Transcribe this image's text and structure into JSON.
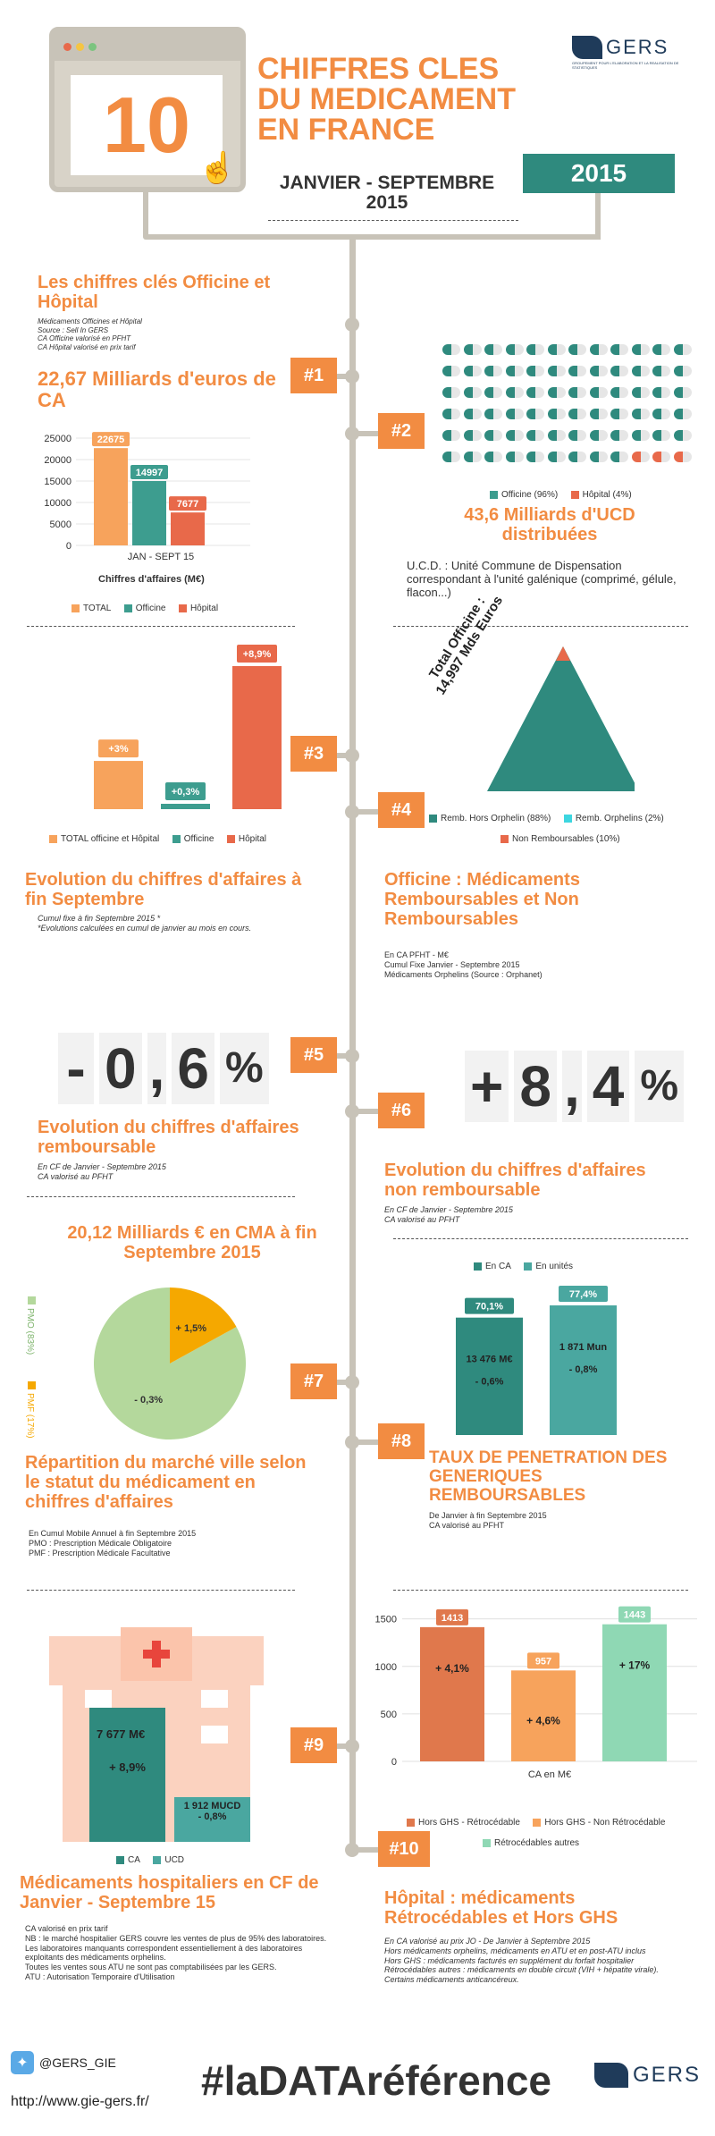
{
  "header": {
    "number": "10",
    "title_lines": [
      "CHIFFRES CLES",
      "DU MEDICAMENT",
      "EN FRANCE"
    ],
    "period_line1": "JANVIER - SEPTEMBRE",
    "period_line2": "2015",
    "year_badge": "2015",
    "logo_text": "GERS",
    "logo_subtitle": "GROUPEMENT POUR L'ELABORATION ET LA REALISATION DE STATISTIQUES"
  },
  "section1": {
    "title": "Les chiffres clés Officine et Hôpital",
    "notes": [
      "Médicaments Officines et Hôpital",
      "Source : Sell In GERS",
      "CA Officine valorisé en PFHT",
      "CA Hôpital valorisé en prix tarif"
    ]
  },
  "item1": {
    "badge": "#1",
    "title": "22,67  Milliards d'euros de CA",
    "chart_data": {
      "type": "bar",
      "categories": [
        "JAN - SEPT 15"
      ],
      "series": [
        {
          "name": "TOTAL",
          "values": [
            22675
          ],
          "color": "#f7a35c"
        },
        {
          "name": "Officine",
          "values": [
            14997
          ],
          "color": "#3d9d8f"
        },
        {
          "name": "Hôpital",
          "values": [
            7677
          ],
          "color": "#e8694a"
        }
      ],
      "yticks": [
        "25000",
        "20000",
        "15000",
        "10000",
        "5000",
        "0"
      ],
      "ylim": [
        0,
        25000
      ],
      "xlabel": "Chiffres d'affaires (M€)",
      "data_labels": [
        "22675",
        "14997",
        "7677"
      ]
    }
  },
  "item2": {
    "badge": "#2",
    "pill_rows": 6,
    "pill_cols": 12,
    "legend": [
      {
        "label": "Officine (96%)",
        "color": "#3d9d8f"
      },
      {
        "label": "Hôpital (4%)",
        "color": "#e8694a"
      }
    ],
    "title": "43,6  Milliards d'UCD distribuées",
    "note": "U.C.D. : Unité Commune de Dispensation correspondant à l'unité galénique (comprimé, gélule, flacon...)"
  },
  "item3": {
    "badge": "#3",
    "chart_data": {
      "type": "bar",
      "categories": [
        "TOTAL officine et Hôpital",
        "Officine",
        "Hôpital"
      ],
      "values": [
        3,
        0.3,
        8.9
      ],
      "data_labels": [
        "+3%",
        "+0,3%",
        "+8,9%"
      ],
      "colors": [
        "#f7a35c",
        "#3d9d8f",
        "#e8694a"
      ]
    },
    "title": "Evolution du chiffres d'affaires à fin Septembre",
    "notes": [
      "Cumul fixe à fin Septembre  2015 *",
      "*Evolutions calculées en cumul de janvier au mois en cours."
    ]
  },
  "item4": {
    "badge": "#4",
    "triangle_label_1": "Total Officine :",
    "triangle_label_2": "14,997 Mds Euros",
    "legend": [
      {
        "label": "Remb. Hors Orphelin (88%)",
        "color": "#2f8a7e"
      },
      {
        "label": "Remb. Orphelins (2%)",
        "color": "#3dd6e0"
      },
      {
        "label": "Non Remboursables (10%)",
        "color": "#e8694a"
      }
    ],
    "title": "Officine : Médicaments Remboursables et Non Remboursables",
    "notes": [
      "En CA PFHT - M€",
      "Cumul Fixe Janvier  - Septembre 2015",
      "Médicaments Orphelins (Source : Orphanet)"
    ]
  },
  "item5": {
    "badge": "#5",
    "digits": [
      "-",
      "0",
      ",",
      "6",
      "%"
    ],
    "title": "Evolution du chiffres d'affaires remboursable",
    "notes": [
      "En CF de Janvier - Septembre 2015",
      "CA valorisé au PFHT"
    ]
  },
  "item6": {
    "badge": "#6",
    "digits": [
      "+",
      "8",
      ",",
      "4",
      "%"
    ],
    "title": "Evolution du chiffres d'affaires non remboursable",
    "notes": [
      "En CF de Janvier - Septembre  2015",
      "CA valorisé au PFHT"
    ]
  },
  "item7": {
    "badge": "#7",
    "title": "20,12 Milliards € en CMA à fin Septembre 2015",
    "chart_data": {
      "type": "pie",
      "slices": [
        {
          "name": "PMO (83%)",
          "value": 83,
          "label": "- 0,3%",
          "color": "#b4d89c"
        },
        {
          "name": "PMF (17%)",
          "value": 17,
          "label": "+ 1,5%",
          "color": "#f5a800"
        }
      ]
    },
    "subtitle": "Répartition du marché ville selon le statut du médicament en chiffres d'affaires",
    "notes": [
      "En Cumul Mobile Annuel à fin Septembre  2015",
      "PMO : Prescription Médicale Obligatoire",
      "PMF : Prescription Médicale Facultative"
    ]
  },
  "item8": {
    "badge": "#8",
    "legend": [
      {
        "label": "En CA",
        "color": "#2f8a7e"
      },
      {
        "label": "En unités",
        "color": "#4aa7a0"
      }
    ],
    "chart_data": {
      "type": "bar",
      "categories": [
        "En CA",
        "En unités"
      ],
      "values": [
        70.1,
        77.4
      ],
      "top_labels": [
        "70,1%",
        "77,4%"
      ],
      "inner_value": [
        "13 476 M€",
        "1 871 Mun"
      ],
      "inner_change": [
        "- 0,6%",
        "- 0,8%"
      ]
    },
    "title": "TAUX DE PENETRATION DES GENERIQUES REMBOURSABLES",
    "notes": [
      "De Janvier à fin Septembre  2015",
      "CA valorisé au PFHT"
    ]
  },
  "item9": {
    "badge": "#9",
    "building": {
      "ca_value": "7 677 M€",
      "ca_change": "+ 8,9%",
      "ucd_value": "1 912 MUCD",
      "ucd_change": "- 0,8%"
    },
    "legend": [
      {
        "label": "CA",
        "color": "#2f8a7e"
      },
      {
        "label": "UCD",
        "color": "#4aa7a0"
      }
    ],
    "title": "Médicaments hospitaliers en CF de Janvier - Septembre 15",
    "notes": [
      "CA valorisé en prix tarif",
      "NB : le marché hospitalier GERS couvre les ventes de plus de 95% des laboratoires. Les laboratoires manquants correspondent essentiellement à des laboratoires exploitants des médicaments orphelins.",
      "Toutes les ventes sous ATU ne sont pas comptabilisées par les GERS.",
      "ATU : Autorisation Temporaire d'Utilisation"
    ]
  },
  "item10": {
    "badge": "#10",
    "chart_data": {
      "type": "bar",
      "categories": [
        "CA en M€"
      ],
      "series": [
        {
          "name": "Hors GHS - Rétrocédable",
          "values": [
            1413
          ],
          "color": "#e0784c",
          "change": "+ 4,1%"
        },
        {
          "name": "Hors GHS - Non Rétrocédable",
          "values": [
            957
          ],
          "color": "#f7a35c",
          "change": "+ 4,6%"
        },
        {
          "name": "Rétrocédables autres",
          "values": [
            1443
          ],
          "color": "#8fd8b4",
          "change": "+ 17%"
        }
      ],
      "yticks": [
        "1500",
        "1000",
        "500",
        "0"
      ],
      "ylim": [
        0,
        1600
      ],
      "xlabel": "CA en M€"
    },
    "title": "Hôpital : médicaments Rétrocédables et Hors GHS",
    "notes": [
      "En CA valorisé au prix JO - De Janvier à Septembre  2015",
      "Hors médicaments orphelins, médicaments en ATU et en post-ATU inclus",
      "Hors GHS : médicaments facturés en supplément du forfait hospitalier",
      "Rétrocédables autres : médicaments en double circuit (VIH + hépatite virale). Certains médicaments anticancéreux."
    ]
  },
  "footer": {
    "twitter": "@GERS_GIE",
    "url": "http://www.gie-gers.fr/",
    "hashtag": "#laDATAréférence",
    "logo_text": "GERS"
  }
}
